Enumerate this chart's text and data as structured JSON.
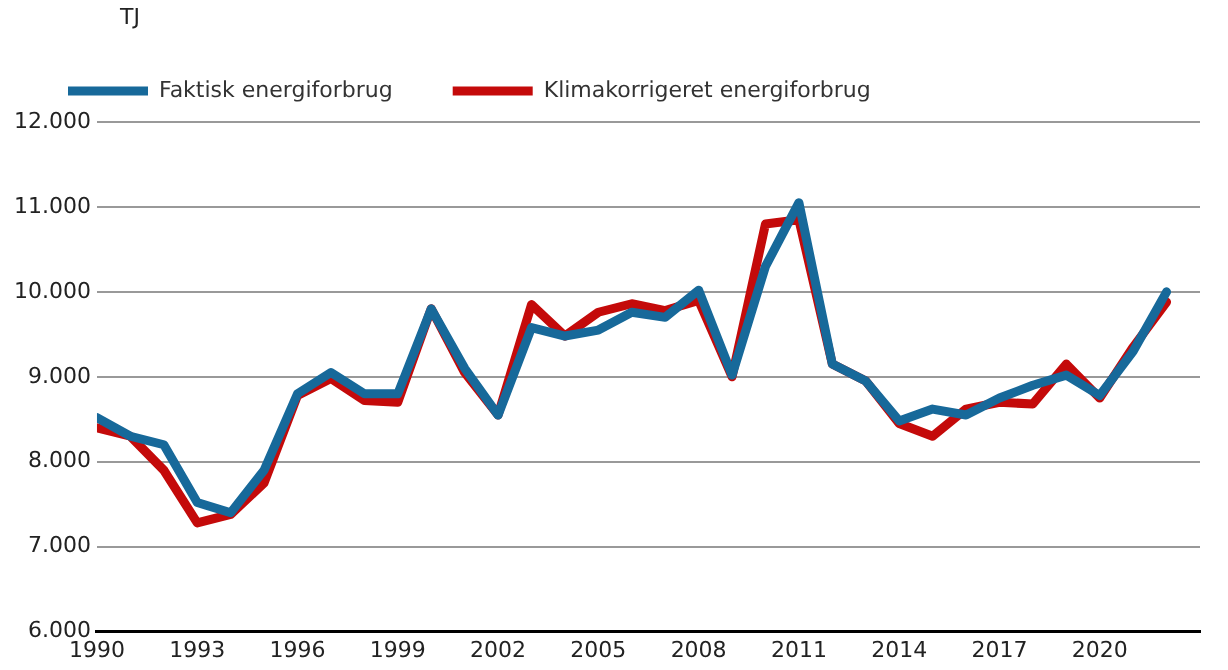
{
  "chart_data": {
    "type": "line",
    "ylabel": "TJ",
    "x": [
      1990,
      1991,
      1992,
      1993,
      1994,
      1995,
      1996,
      1997,
      1998,
      1999,
      2000,
      2001,
      2002,
      2003,
      2004,
      2005,
      2006,
      2007,
      2008,
      2009,
      2010,
      2011,
      2012,
      2013,
      2014,
      2015,
      2016,
      2017,
      2018,
      2019,
      2020,
      2021,
      2022
    ],
    "series": [
      {
        "name": "Faktisk energiforbrug",
        "color": "#17699a",
        "values": [
          8520,
          8300,
          8200,
          7520,
          7400,
          7900,
          8800,
          9050,
          8800,
          8800,
          9800,
          9100,
          8550,
          9580,
          9480,
          9550,
          9760,
          9700,
          10020,
          9020,
          10300,
          11050,
          9150,
          8950,
          8480,
          8620,
          8550,
          8750,
          8900,
          9020,
          8780,
          9300,
          10000
        ]
      },
      {
        "name": "Klimakorrigeret energiforbrug",
        "color": "#c40a0a",
        "values": [
          8400,
          8300,
          7900,
          7280,
          7380,
          7750,
          8780,
          8980,
          8720,
          8700,
          9800,
          9050,
          8550,
          9850,
          9480,
          9760,
          9860,
          9780,
          9900,
          9000,
          10800,
          10850,
          9150,
          8950,
          8450,
          8300,
          8620,
          8700,
          8680,
          9150,
          8750,
          9350,
          9880
        ]
      }
    ],
    "xlim": [
      1990,
      2023
    ],
    "xticks": [
      1990,
      1993,
      1996,
      1999,
      2002,
      2005,
      2008,
      2011,
      2014,
      2017,
      2020
    ],
    "ylim": [
      6000,
      12000
    ],
    "yticks": [
      {
        "value": 6000,
        "label": "6.000"
      },
      {
        "value": 7000,
        "label": "7.000"
      },
      {
        "value": 8000,
        "label": "8.000"
      },
      {
        "value": 9000,
        "label": "9.000"
      },
      {
        "value": 10000,
        "label": "10.000"
      },
      {
        "value": 11000,
        "label": "11.000"
      },
      {
        "value": 12000,
        "label": "12.000"
      }
    ],
    "grid": "y",
    "legend": "top left",
    "marker": "none",
    "line_style": "solid"
  }
}
